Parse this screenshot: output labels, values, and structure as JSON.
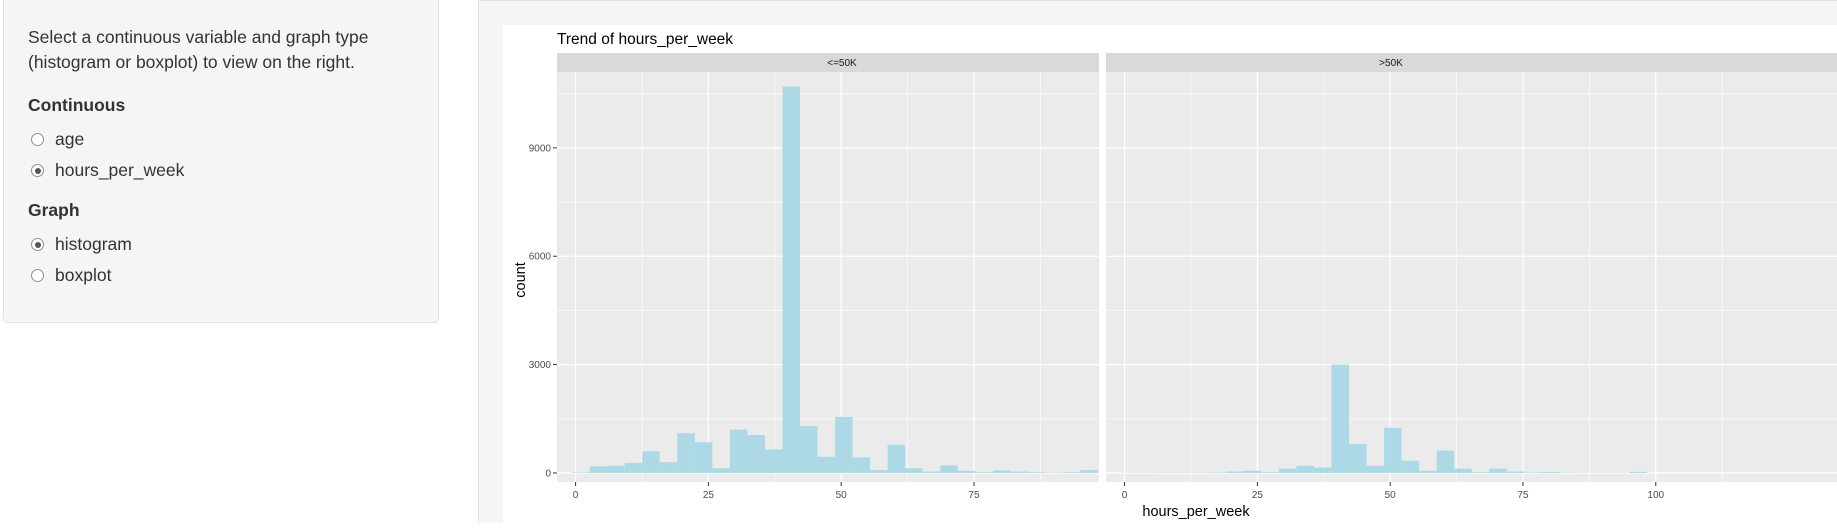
{
  "sidebar": {
    "help_text": "Select a continuous variable and graph type (histogram or boxplot) to view on the right.",
    "continuous": {
      "label": "Continuous",
      "options": [
        {
          "label": "age",
          "checked": false
        },
        {
          "label": "hours_per_week",
          "checked": true
        }
      ]
    },
    "graph": {
      "label": "Graph",
      "options": [
        {
          "label": "histogram",
          "checked": true
        },
        {
          "label": "boxplot",
          "checked": false
        }
      ]
    }
  },
  "colors": {
    "bar_fill": "#add8e6",
    "panel_bg": "#ebebeb",
    "strip_bg": "#d9d9d9",
    "grid": "#ffffff",
    "sidebar_bg": "#f5f5f5"
  },
  "chart_data": {
    "type": "bar",
    "title": "Trend of  hours_per_week",
    "xlabel": "hours_per_week",
    "ylabel": "count",
    "xlim": [
      -3.5,
      104
    ],
    "ylim": [
      -250,
      11100
    ],
    "x_ticks": [
      0,
      25,
      50,
      75,
      100
    ],
    "x_tick_labels": [
      "0",
      "25",
      "50",
      "75",
      "100"
    ],
    "y_ticks": [
      0,
      3000,
      6000,
      9000
    ],
    "y_tick_labels": [
      "0",
      "3000",
      "6000",
      "9000"
    ],
    "bin_width": 3.3,
    "bin_start": -0.65,
    "legend": "none",
    "grid": true,
    "facets": [
      {
        "label": "<=50K",
        "values": [
          15,
          180,
          200,
          280,
          600,
          300,
          1100,
          850,
          130,
          1200,
          1050,
          650,
          10700,
          1300,
          450,
          1550,
          430,
          80,
          780,
          130,
          40,
          210,
          60,
          20,
          70,
          40,
          20,
          10,
          20,
          80
        ]
      },
      {
        "label": ">50K",
        "values": [
          5,
          5,
          10,
          10,
          10,
          15,
          40,
          60,
          20,
          120,
          200,
          150,
          3000,
          800,
          200,
          1250,
          340,
          60,
          620,
          120,
          20,
          120,
          40,
          15,
          25,
          10,
          5,
          5,
          5,
          30
        ]
      }
    ]
  }
}
